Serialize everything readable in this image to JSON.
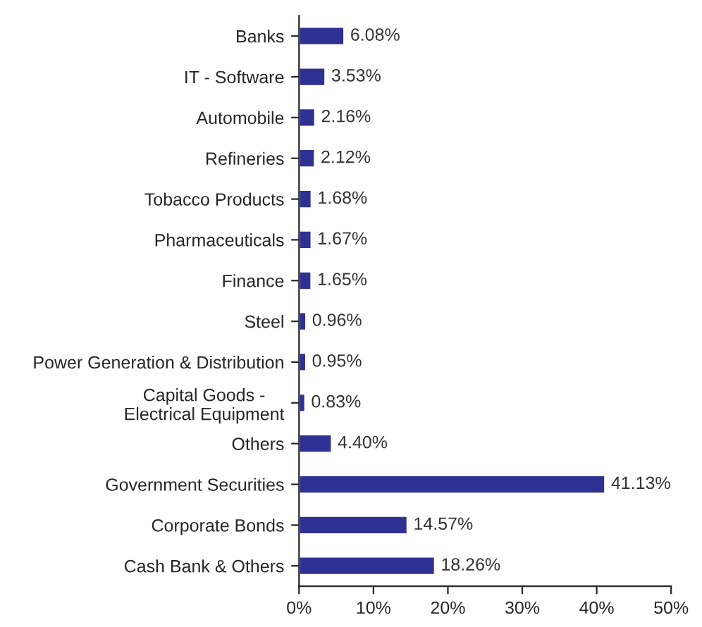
{
  "chart_data": {
    "type": "bar",
    "orientation": "horizontal",
    "categories": [
      "Banks",
      "IT - Software",
      "Automobile",
      "Refineries",
      "Tobacco Products",
      "Pharmaceuticals",
      "Finance",
      "Steel",
      "Power Generation & Distribution",
      "Capital Goods -\nElectrical Equipment",
      "Others",
      "Government Securities",
      "Corporate Bonds",
      "Cash Bank & Others"
    ],
    "values": [
      6.08,
      3.53,
      2.16,
      2.12,
      1.68,
      1.67,
      1.65,
      0.96,
      0.95,
      0.83,
      4.4,
      41.13,
      14.57,
      18.26
    ],
    "value_labels": [
      "6.08%",
      "3.53%",
      "2.16%",
      "2.12%",
      "1.68%",
      "1.67%",
      "1.65%",
      "0.96%",
      "0.95%",
      "0.83%",
      "4.40%",
      "41.13%",
      "14.57%",
      "18.26%"
    ],
    "color": "#2e3192",
    "xlim": [
      0,
      50
    ],
    "xticks": [
      {
        "value": 0,
        "label": "0%"
      },
      {
        "value": 10,
        "label": "10%"
      },
      {
        "value": 20,
        "label": "20%"
      },
      {
        "value": 30,
        "label": "30%"
      },
      {
        "value": 40,
        "label": "40%"
      },
      {
        "value": 50,
        "label": "50%"
      }
    ],
    "grid": false,
    "legend": false
  }
}
